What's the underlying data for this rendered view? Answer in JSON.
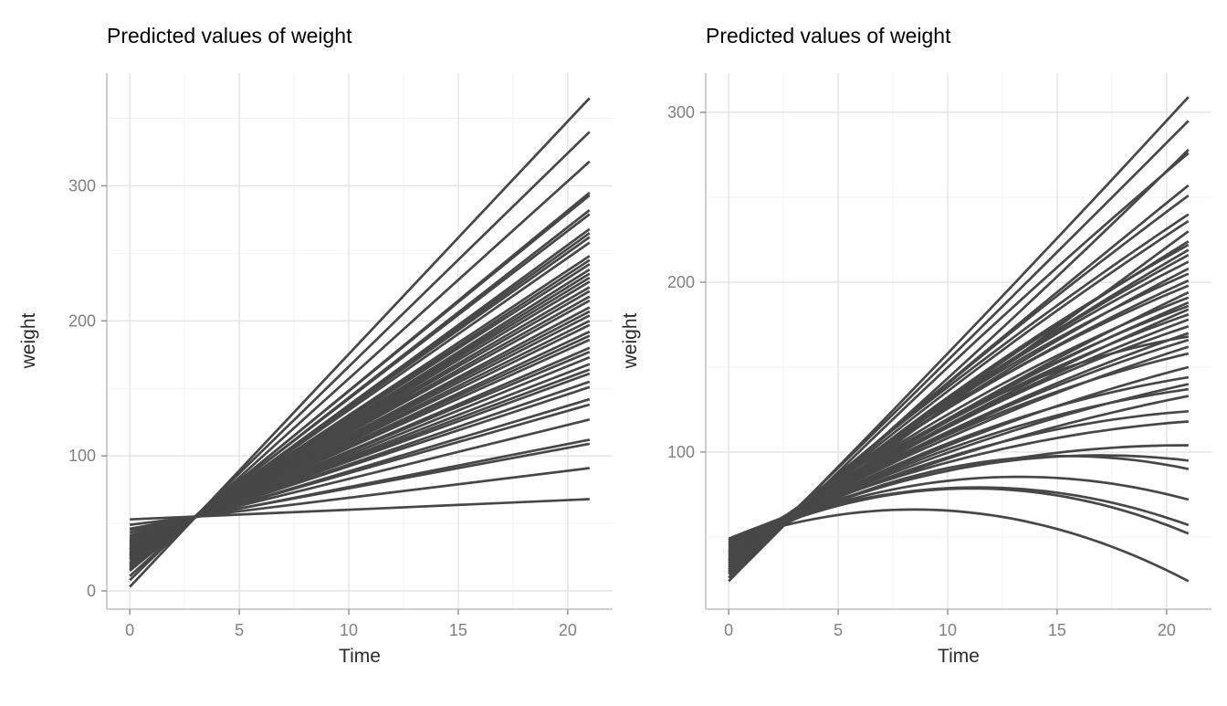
{
  "figure": {
    "background": "#FFFFFF",
    "line_color": "#474747",
    "grid_major_color": "#E5E5E5",
    "grid_minor_color": "#F2F2F2",
    "axis_line_color": "#C8C8C8",
    "tick_mark_color": "#8F8F8F",
    "tick_label_color": "#808080",
    "axis_title_color": "#2B2B2B",
    "title_color": "#000000"
  },
  "chart_data": [
    {
      "type": "line",
      "model": "linear",
      "title": "Predicted values of weight",
      "xlabel": "Time",
      "ylabel": "weight",
      "legend": "none",
      "grid": "on",
      "x_ticks": [
        0,
        5,
        10,
        15,
        20
      ],
      "x_minor": [
        2.5,
        7.5,
        12.5,
        17.5
      ],
      "y_ticks": [
        0,
        100,
        200,
        300
      ],
      "y_minor": [
        50,
        150,
        250,
        350
      ],
      "xlim": [
        -1.05,
        22.05
      ],
      "ylim": [
        -13.5,
        383.5
      ],
      "x_range": [
        0,
        21
      ],
      "lines_note": "each line = [weight at Time 0, weight at Time 21], straight segment",
      "lines": [
        [
          3,
          365
        ],
        [
          8,
          340
        ],
        [
          11,
          318
        ],
        [
          15,
          295
        ],
        [
          16,
          293
        ],
        [
          17,
          282
        ],
        [
          18,
          279
        ],
        [
          19,
          268
        ],
        [
          20,
          265
        ],
        [
          21,
          262
        ],
        [
          21,
          258
        ],
        [
          23,
          248
        ],
        [
          23,
          245
        ],
        [
          24,
          242
        ],
        [
          24,
          238
        ],
        [
          25,
          235
        ],
        [
          26,
          232
        ],
        [
          26,
          229
        ],
        [
          27,
          225
        ],
        [
          27,
          222
        ],
        [
          28,
          218
        ],
        [
          28,
          215
        ],
        [
          29,
          210
        ],
        [
          30,
          207
        ],
        [
          30,
          204
        ],
        [
          31,
          200
        ],
        [
          31,
          197
        ],
        [
          32,
          192
        ],
        [
          33,
          189
        ],
        [
          33,
          186
        ],
        [
          34,
          180
        ],
        [
          35,
          177
        ],
        [
          35,
          173
        ],
        [
          36,
          168
        ],
        [
          37,
          164
        ],
        [
          37,
          161
        ],
        [
          38,
          155
        ],
        [
          39,
          151
        ],
        [
          40,
          142
        ],
        [
          41,
          138
        ],
        [
          43,
          127
        ],
        [
          45,
          112
        ],
        [
          46,
          109
        ],
        [
          49,
          91
        ],
        [
          53,
          68
        ]
      ]
    },
    {
      "type": "line",
      "model": "quadratic",
      "title": "Predicted values of weight",
      "xlabel": "Time",
      "ylabel": "weight",
      "legend": "none",
      "grid": "on",
      "x_ticks": [
        0,
        5,
        10,
        15,
        20
      ],
      "x_minor": [
        2.5,
        7.5,
        12.5,
        17.5
      ],
      "y_ticks": [
        100,
        200,
        300
      ],
      "y_minor": [
        50,
        150,
        250
      ],
      "xlim": [
        -1.05,
        22.05
      ],
      "ylim": [
        7.5,
        323.1
      ],
      "x_range": [
        0,
        21
      ],
      "lines_note": "each line = [weight at Time 0, weight at Time 2, weight at Time 21], quadratic through the 3 points",
      "lines": [
        [
          26,
          52,
          309
        ],
        [
          28,
          53,
          295
        ],
        [
          30,
          52,
          278
        ],
        [
          24,
          50,
          276
        ],
        [
          32,
          54,
          257
        ],
        [
          29,
          52,
          251
        ],
        [
          33,
          55,
          240
        ],
        [
          31,
          53,
          236
        ],
        [
          36,
          54,
          230
        ],
        [
          35,
          55,
          224
        ],
        [
          30,
          52,
          222
        ],
        [
          34,
          54,
          219
        ],
        [
          36,
          56,
          216
        ],
        [
          32,
          53,
          212
        ],
        [
          37,
          56,
          208
        ],
        [
          33,
          54,
          205
        ],
        [
          38,
          57,
          201
        ],
        [
          35,
          55,
          198
        ],
        [
          39,
          56,
          194
        ],
        [
          36,
          55,
          191
        ],
        [
          40,
          57,
          188
        ],
        [
          34,
          53,
          186
        ],
        [
          41,
          57,
          184
        ],
        [
          37,
          55,
          181
        ],
        [
          42,
          58,
          178
        ],
        [
          38,
          55,
          174
        ],
        [
          43,
          58,
          170
        ],
        [
          31,
          52,
          168
        ],
        [
          39,
          55,
          166
        ],
        [
          44,
          58,
          162
        ],
        [
          40,
          56,
          158
        ],
        [
          45,
          58,
          150
        ],
        [
          41,
          56,
          144
        ],
        [
          46,
          58,
          140
        ],
        [
          42,
          56,
          137
        ],
        [
          47,
          58,
          133
        ],
        [
          43,
          56,
          124
        ],
        [
          48,
          59,
          118
        ],
        [
          49,
          59,
          104
        ],
        [
          44,
          56,
          95
        ],
        [
          40,
          54,
          90
        ],
        [
          46,
          57,
          72
        ],
        [
          48,
          58,
          57
        ],
        [
          45,
          56,
          52
        ],
        [
          47,
          55,
          24
        ]
      ]
    }
  ]
}
